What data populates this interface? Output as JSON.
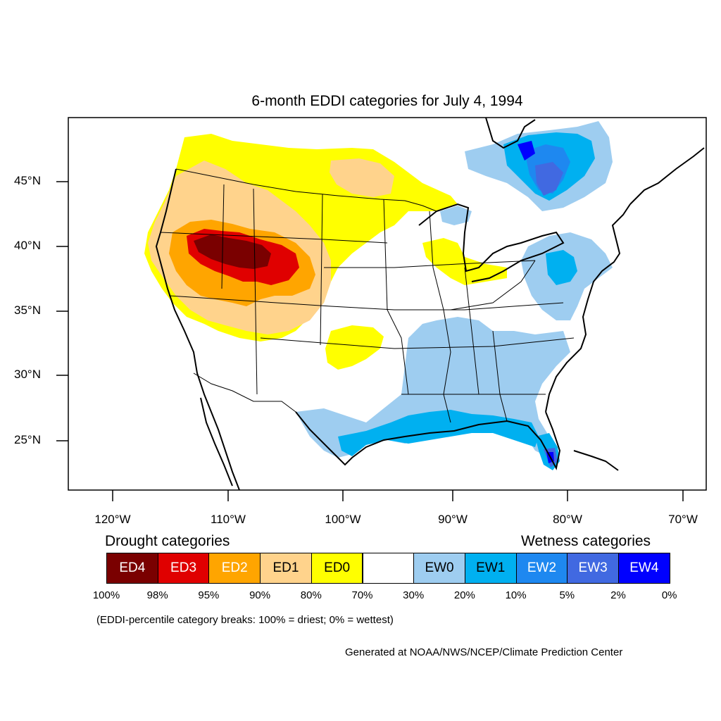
{
  "title": "6-month EDDI categories for July 4, 1994",
  "lat_ticks": [
    "45°N",
    "40°N",
    "35°N",
    "30°N",
    "25°N"
  ],
  "lon_ticks": [
    "120°W",
    "110°W",
    "100°W",
    "90°W",
    "80°W",
    "70°W"
  ],
  "legend": {
    "drought_heading": "Drought categories",
    "wetness_heading": "Wetness categories",
    "categories": [
      {
        "label": "ED4",
        "color": "#7a0000",
        "text_color": "#ffffff"
      },
      {
        "label": "ED3",
        "color": "#e00000",
        "text_color": "#ffffff"
      },
      {
        "label": "ED2",
        "color": "#ffa500",
        "text_color": "#ffffff"
      },
      {
        "label": "ED1",
        "color": "#ffd38c",
        "text_color": "#000000"
      },
      {
        "label": "ED0",
        "color": "#ffff00",
        "text_color": "#000000"
      },
      {
        "label": "",
        "color": "#ffffff",
        "text_color": "#000000"
      },
      {
        "label": "EW0",
        "color": "#9ecdf0",
        "text_color": "#000000"
      },
      {
        "label": "EW1",
        "color": "#00b0f0",
        "text_color": "#000000"
      },
      {
        "label": "EW2",
        "color": "#1e88f0",
        "text_color": "#ffffff"
      },
      {
        "label": "EW3",
        "color": "#4169e1",
        "text_color": "#ffffff"
      },
      {
        "label": "EW4",
        "color": "#0000ff",
        "text_color": "#ffffff"
      }
    ],
    "breaks": [
      "100%",
      "98%",
      "95%",
      "90%",
      "80%",
      "70%",
      "30%",
      "20%",
      "10%",
      "5%",
      "2%",
      "0%"
    ],
    "note": "(EDDI-percentile category breaks: 100% = driest; 0% = wettest)"
  },
  "credit": "Generated at NOAA/NWS/NCEP/Climate Prediction Center"
}
